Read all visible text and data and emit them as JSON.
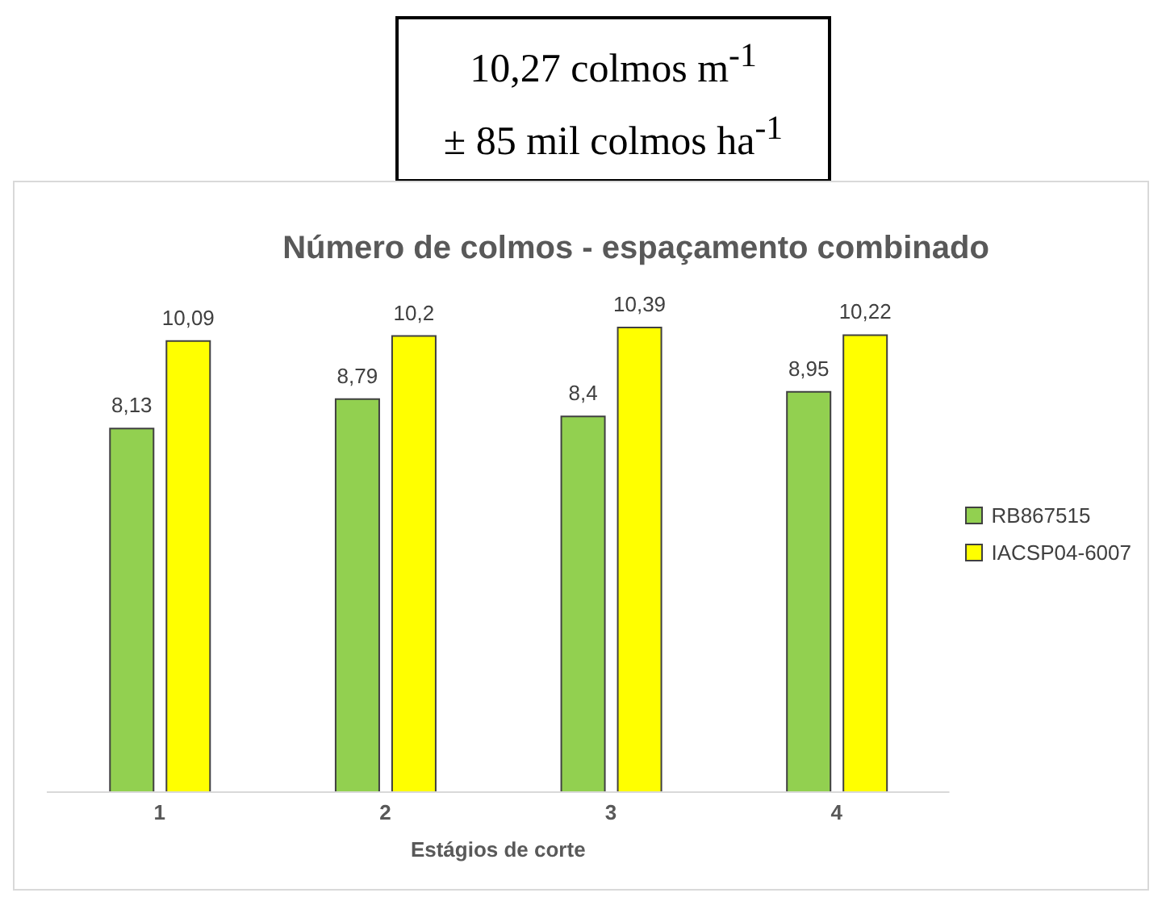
{
  "chart_data": {
    "type": "bar",
    "title": "Número de colmos - espaçamento combinado",
    "xlabel": "Estágios de corte",
    "annotations": [
      "10,27 colmos m$^{-1}$",
      "± 85 mil colmos ha$^{-1}$"
    ],
    "categories": [
      "1",
      "2",
      "3",
      "4"
    ],
    "series": [
      {
        "name": "RB867515",
        "color": "#92d050",
        "values": [
          8.13,
          8.79,
          8.4,
          8.95
        ],
        "value_labels": [
          "8,13",
          "8,79",
          "8,4",
          "8,95"
        ]
      },
      {
        "name": "IACSP04-6007",
        "color": "#ffff00",
        "values": [
          10.09,
          10.2,
          10.39,
          10.22
        ],
        "value_labels": [
          "10,09",
          "10,2",
          "10,39",
          "10,22"
        ]
      }
    ],
    "legend": "right",
    "grid": false
  }
}
